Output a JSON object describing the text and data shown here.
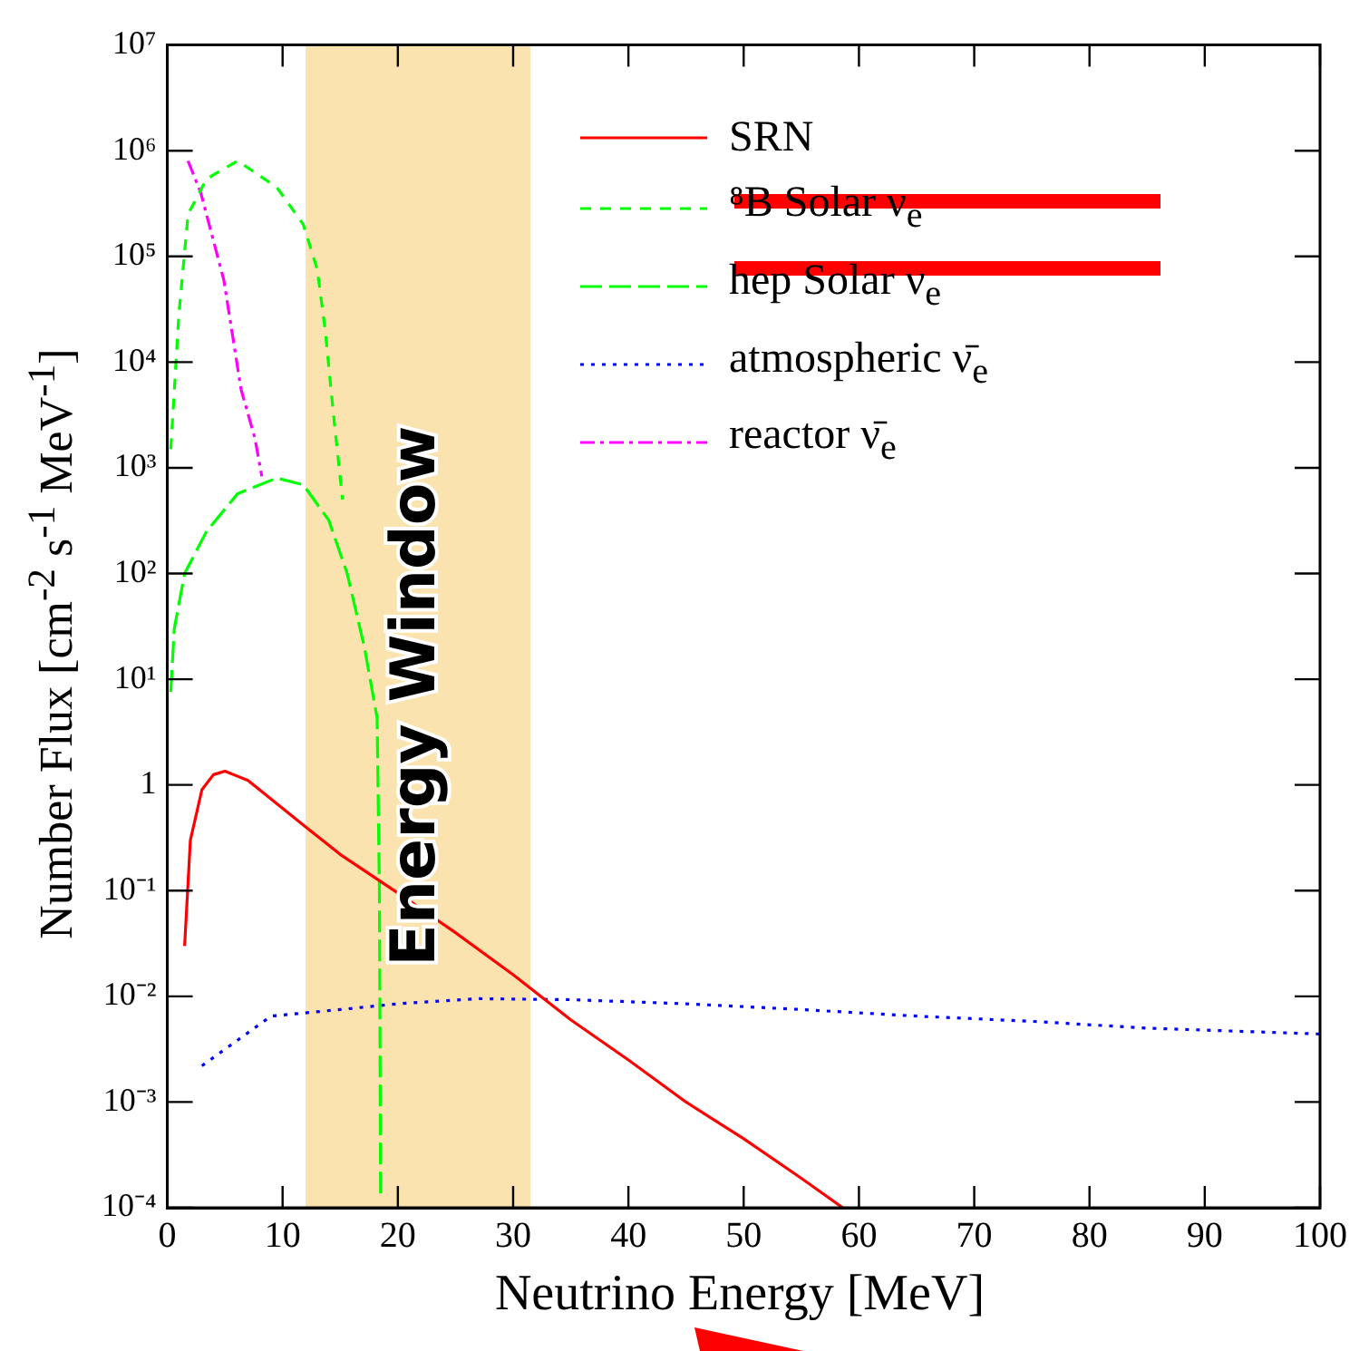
{
  "chart_data": {
    "type": "line",
    "xlabel": "Neutrino Energy [MeV]",
    "ylabel": "Number Flux [cm$^{-2}$ s$^{-1}$ MeV$^{-1}$]",
    "xlim": [
      0,
      100
    ],
    "xticks": [
      0,
      10,
      20,
      30,
      40,
      50,
      60,
      70,
      80,
      90,
      100
    ],
    "ylim": [
      0.0001,
      10000000
    ],
    "log": "y",
    "yticks": [
      {
        "value": 0.0001,
        "label": "10⁻⁴"
      },
      {
        "value": 0.001,
        "label": "10⁻³"
      },
      {
        "value": 0.01,
        "label": "10⁻²"
      },
      {
        "value": 0.1,
        "label": "10⁻¹"
      },
      1,
      {
        "value": 10,
        "label": "10¹"
      },
      {
        "value": 100,
        "label": "10²"
      },
      {
        "value": 1000,
        "label": "10³"
      },
      {
        "value": 10000,
        "label": "10⁴"
      },
      {
        "value": 100000,
        "label": "10⁵"
      },
      {
        "value": 1000000,
        "label": "10⁶"
      },
      {
        "value": 10000000,
        "label": "10⁷"
      }
    ],
    "grid": false,
    "legend": "top right",
    "marker": "none",
    "bands": [
      {
        "axis": "x",
        "from": 12,
        "to": 31.5,
        "label": "Energy Window",
        "color": "#fbe3b0"
      }
    ],
    "series": [
      {
        "name": "SRN",
        "color": "#ff0000",
        "line_style": "solid",
        "x": [
          1.5,
          2,
          3,
          4,
          5,
          7,
          10,
          12,
          15,
          20,
          25,
          30,
          35,
          40,
          45,
          50,
          55,
          58.6
        ],
        "values": [
          0.03,
          0.3,
          0.9,
          1.25,
          1.35,
          1.1,
          0.6,
          0.4,
          0.22,
          0.095,
          0.04,
          0.016,
          0.006,
          0.0025,
          0.001,
          0.00045,
          0.00019,
          0.0001
        ]
      },
      {
        "name": "⁸B Solar ν$_{e}$",
        "color": "#00ff00",
        "line_style": "dashed",
        "x": [
          0.3,
          1,
          1.8,
          3.4,
          6.1,
          9.5,
          11.8,
          13,
          13.7,
          14.4,
          15.2
        ],
        "values": [
          1500,
          28000,
          250000,
          540000,
          800000,
          450000,
          200000,
          76000,
          20000,
          3300,
          500
        ]
      },
      {
        "name": "hep Solar ν$_{e}$",
        "color": "#00ff00",
        "line_style": "longdash",
        "x": [
          0.3,
          0.6,
          1.5,
          3.4,
          6.1,
          9.5,
          11.8,
          14,
          15.6,
          17.1,
          18.2,
          18.4,
          18.5
        ],
        "values": [
          7.6,
          30,
          100,
          250,
          570,
          800,
          690,
          320,
          100,
          20,
          4.3,
          0.1,
          0.00013
        ]
      },
      {
        "name": "atmospheric ν̄$_{e}$",
        "color": "#0000ff",
        "line_style": "dotted",
        "x": [
          3,
          9,
          15,
          20,
          27,
          35,
          45,
          55,
          65,
          75,
          85,
          100
        ],
        "values": [
          0.0022,
          0.0065,
          0.0075,
          0.0085,
          0.0095,
          0.0093,
          0.0085,
          0.0075,
          0.0065,
          0.0058,
          0.005,
          0.0044
        ]
      },
      {
        "name": "reactor ν̄$_{e}$",
        "color": "#ff00ff",
        "line_style": "dashdot",
        "x": [
          1.8,
          2.9,
          4.9,
          6.4,
          7.6,
          8.2
        ],
        "values": [
          800000,
          400000,
          60000,
          5500,
          1900,
          830
        ]
      }
    ]
  }
}
